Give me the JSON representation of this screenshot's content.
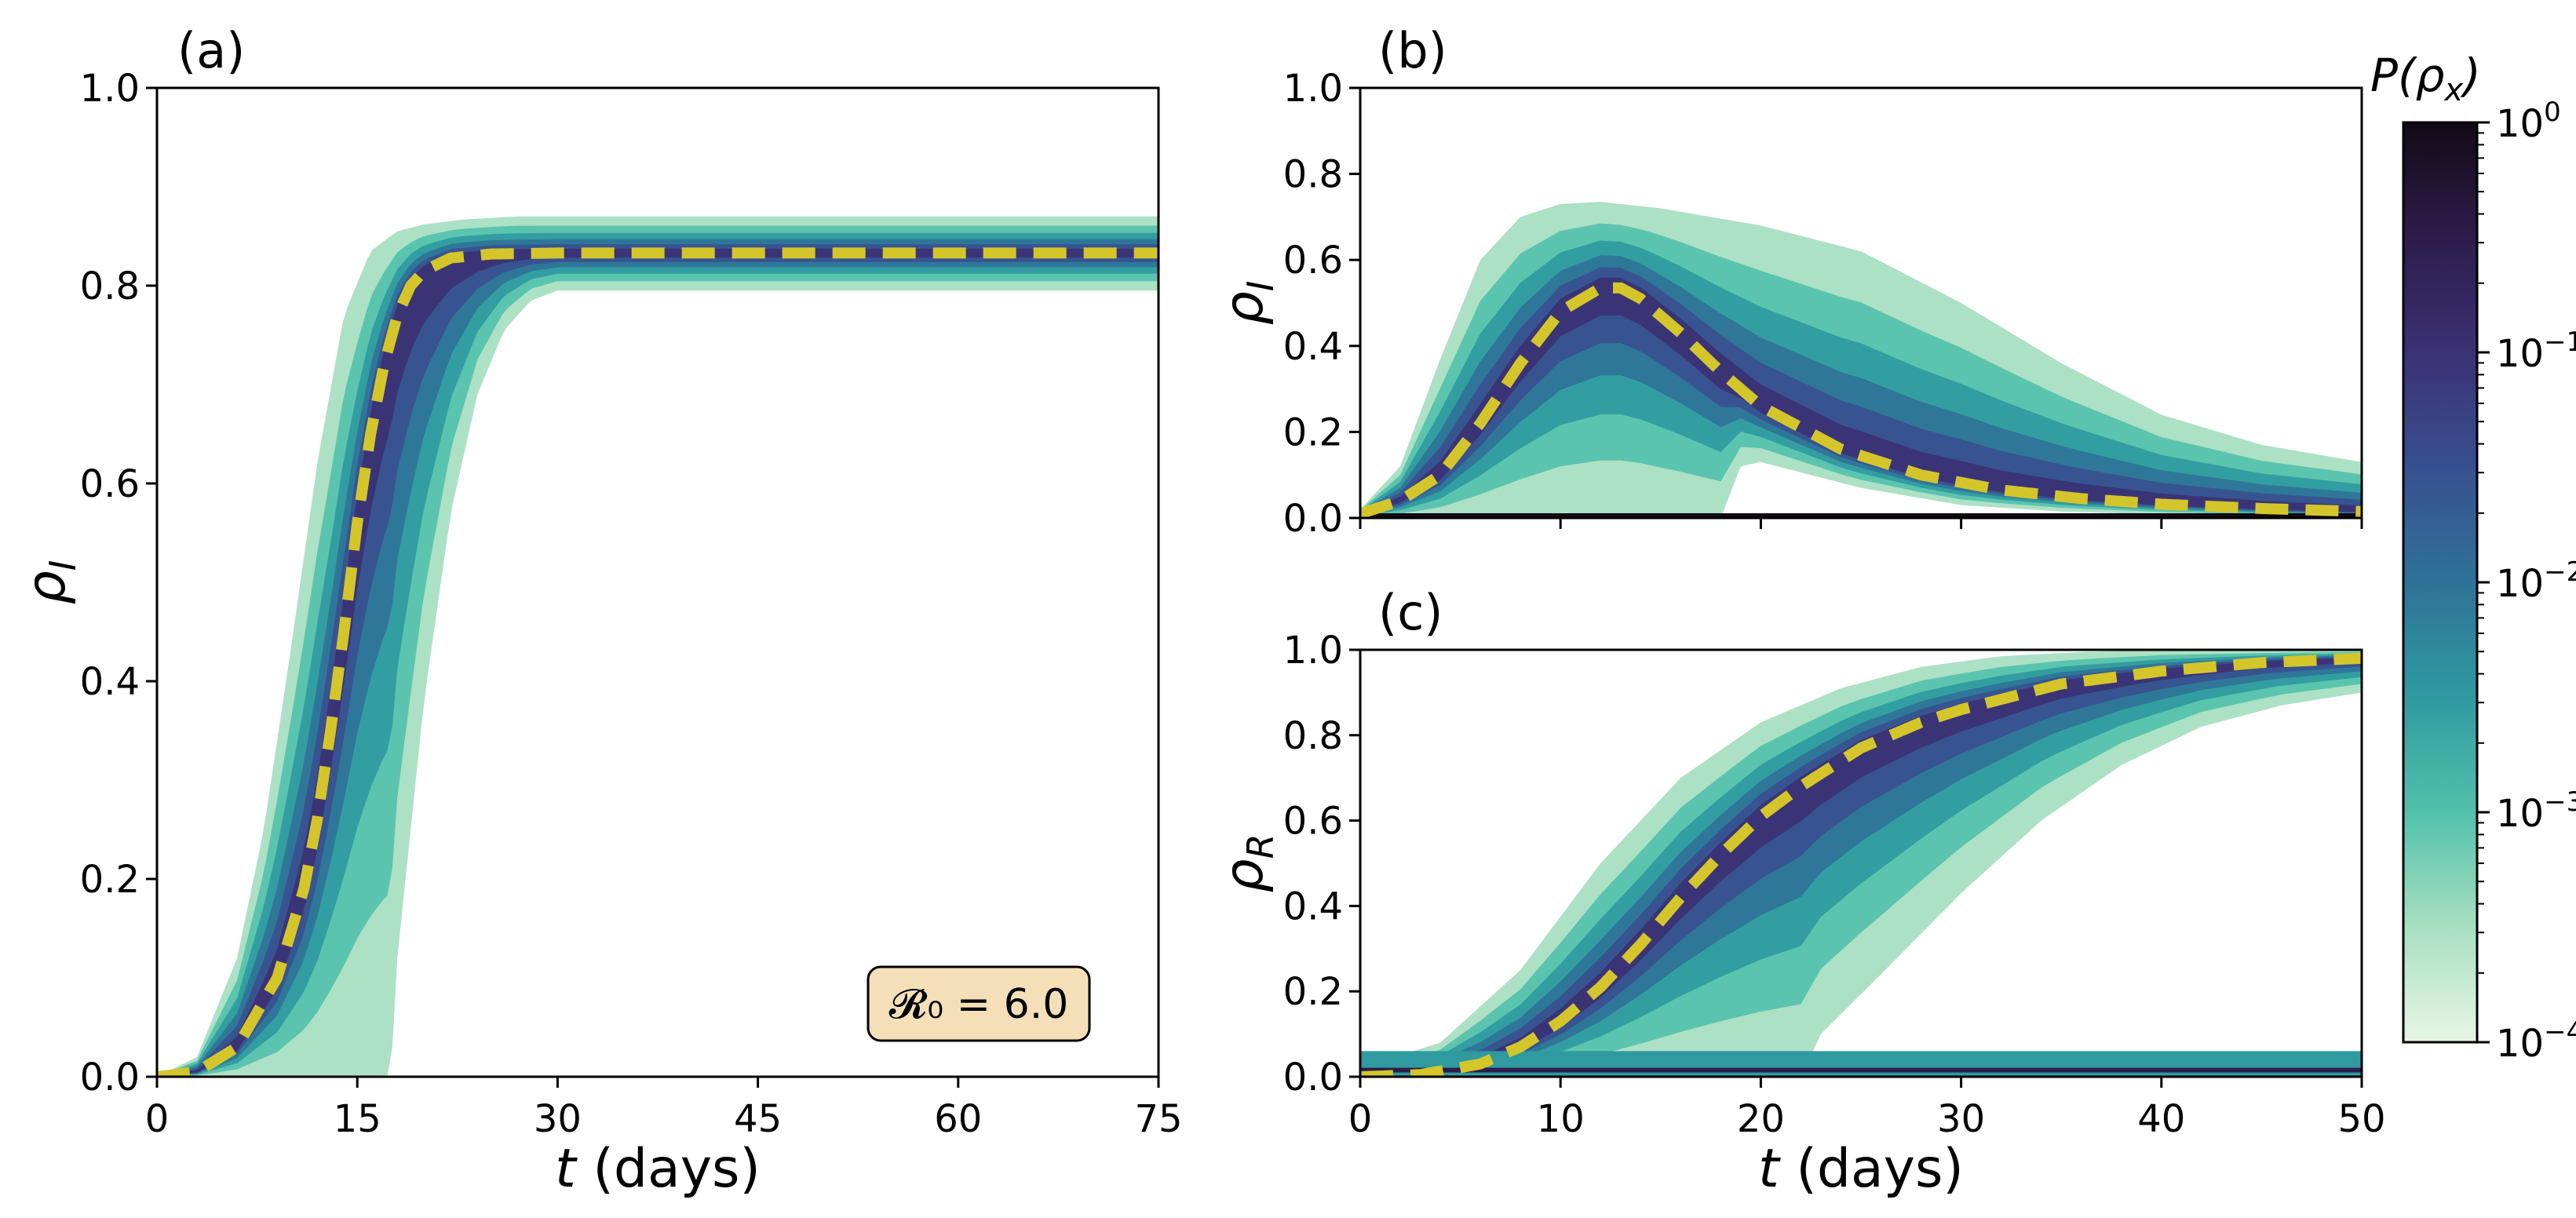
{
  "chart_data": [
    {
      "panel": "(a)",
      "type": "area",
      "xlabel": "t (days)",
      "xlabel_var": "t",
      "xlabel_unit": " (days)",
      "ylabel": "ρI",
      "ylabel_sym": "ρ",
      "ylabel_sub": "I",
      "xlim": [
        0,
        75
      ],
      "ylim": [
        0,
        1.0
      ],
      "xticks": [
        "0",
        "15",
        "30",
        "45",
        "60",
        "75"
      ],
      "yticks": [
        "0.0",
        "0.2",
        "0.4",
        "0.6",
        "0.8",
        "1.0"
      ],
      "mean_curve": {
        "name": "mean ρI",
        "color": "#d4c62a",
        "style": "dashed",
        "x": [
          0,
          3,
          6,
          9,
          11,
          12,
          13,
          14,
          15,
          16,
          17,
          18,
          19,
          20,
          22,
          25,
          30,
          45,
          60,
          75
        ],
        "y": [
          0.0,
          0.005,
          0.03,
          0.1,
          0.19,
          0.26,
          0.35,
          0.45,
          0.56,
          0.65,
          0.72,
          0.77,
          0.8,
          0.815,
          0.828,
          0.832,
          0.833,
          0.833,
          0.833,
          0.833
        ]
      },
      "band": {
        "upper": {
          "x": [
            0,
            3,
            6,
            8,
            10,
            12,
            14,
            16,
            18,
            20,
            23,
            27,
            30,
            75
          ],
          "y": [
            0.0,
            0.02,
            0.12,
            0.25,
            0.43,
            0.62,
            0.77,
            0.835,
            0.855,
            0.862,
            0.867,
            0.87,
            0.87,
            0.87
          ]
        },
        "lower": {
          "x": [
            0,
            17.5,
            18,
            20,
            22,
            24,
            26,
            28,
            30,
            75
          ],
          "y": [
            0.0,
            0.0,
            0.12,
            0.38,
            0.57,
            0.69,
            0.755,
            0.785,
            0.795,
            0.795
          ]
        }
      },
      "annotation": "𝓡₀ = 6.0"
    },
    {
      "panel": "(b)",
      "type": "area",
      "xlabel": "",
      "ylabel": "ρI",
      "ylabel_sym": "ρ",
      "ylabel_sub": "I",
      "xlim": [
        0,
        50
      ],
      "ylim": [
        0,
        1.0
      ],
      "xticks": [],
      "yticks": [
        "0.0",
        "0.2",
        "0.4",
        "0.6",
        "0.8",
        "1.0"
      ],
      "mean_curve": {
        "name": "mean ρI",
        "color": "#d4c62a",
        "style": "dashed",
        "x": [
          0,
          2,
          4,
          6,
          8,
          10,
          12,
          13,
          14,
          16,
          18,
          20,
          24,
          28,
          32,
          36,
          40,
          45,
          50
        ],
        "y": [
          0.01,
          0.04,
          0.1,
          0.22,
          0.36,
          0.48,
          0.535,
          0.535,
          0.51,
          0.43,
          0.34,
          0.26,
          0.16,
          0.1,
          0.065,
          0.045,
          0.032,
          0.022,
          0.015
        ]
      },
      "band": {
        "upper": {
          "x": [
            0,
            2,
            4,
            6,
            8,
            10,
            12,
            15,
            20,
            25,
            30,
            35,
            40,
            45,
            50
          ],
          "y": [
            0.02,
            0.12,
            0.37,
            0.6,
            0.7,
            0.73,
            0.735,
            0.72,
            0.68,
            0.62,
            0.5,
            0.36,
            0.24,
            0.17,
            0.13
          ]
        },
        "lower": {
          "x": [
            0,
            5,
            10,
            15,
            18,
            19,
            20,
            25,
            30,
            35,
            40,
            45,
            50
          ],
          "y": [
            0.0,
            0.0,
            0.0,
            0.0,
            0.0,
            0.12,
            0.13,
            0.07,
            0.03,
            0.015,
            0.008,
            0.004,
            0.002
          ]
        }
      },
      "absorbing_state": {
        "y": 0.0
      }
    },
    {
      "panel": "(c)",
      "type": "area",
      "xlabel": "t (days)",
      "xlabel_var": "t",
      "xlabel_unit": " (days)",
      "ylabel": "ρR",
      "ylabel_sym": "ρ",
      "ylabel_sub": "R",
      "xlim": [
        0,
        50
      ],
      "ylim": [
        0,
        1.0
      ],
      "xticks": [
        "0",
        "10",
        "20",
        "30",
        "40",
        "50"
      ],
      "yticks": [
        "0.0",
        "0.2",
        "0.4",
        "0.6",
        "0.8",
        "1.0"
      ],
      "mean_curve": {
        "name": "mean ρR",
        "color": "#d4c62a",
        "style": "dashed",
        "x": [
          0,
          3,
          6,
          8,
          10,
          12,
          14,
          16,
          18,
          20,
          22,
          25,
          28,
          30,
          35,
          40,
          45,
          50
        ],
        "y": [
          0.0,
          0.005,
          0.03,
          0.07,
          0.13,
          0.21,
          0.31,
          0.42,
          0.52,
          0.61,
          0.68,
          0.77,
          0.83,
          0.86,
          0.92,
          0.95,
          0.97,
          0.98
        ]
      },
      "band": {
        "upper": {
          "x": [
            0,
            4,
            8,
            12,
            16,
            20,
            24,
            28,
            32,
            36,
            40,
            50
          ],
          "y": [
            0.02,
            0.08,
            0.25,
            0.5,
            0.7,
            0.83,
            0.91,
            0.96,
            0.985,
            0.995,
            1.0,
            1.0
          ]
        },
        "lower": {
          "x": [
            0,
            22,
            23,
            26,
            30,
            34,
            38,
            42,
            46,
            50
          ],
          "y": [
            0.0,
            0.0,
            0.1,
            0.24,
            0.43,
            0.6,
            0.73,
            0.82,
            0.87,
            0.9
          ]
        }
      },
      "minor_band": {
        "y_low": 0.0,
        "y_high": 0.06,
        "x_from": 0,
        "x_to": 50
      }
    },
    {
      "type": "colorbar",
      "label": "P(ρx)",
      "label_prefix": "P(",
      "label_sym": "ρ",
      "label_sub": "x",
      "label_suffix": ")",
      "scale": "log",
      "range": [
        0.0001,
        1
      ],
      "ticks": [
        {
          "value": 1,
          "base": "10",
          "exp": "0"
        },
        {
          "value": 0.1,
          "base": "10",
          "exp": "−1"
        },
        {
          "value": 0.01,
          "base": "10",
          "exp": "−2"
        },
        {
          "value": 0.001,
          "base": "10",
          "exp": "−3"
        },
        {
          "value": 0.0001,
          "base": "10",
          "exp": "−4"
        }
      ],
      "colormap": [
        "#e8f6e4",
        "#a8dfc2",
        "#52c1ab",
        "#2f9aa0",
        "#2f7298",
        "#38508f",
        "#3b3174",
        "#2c1d4b",
        "#120a16"
      ]
    }
  ]
}
